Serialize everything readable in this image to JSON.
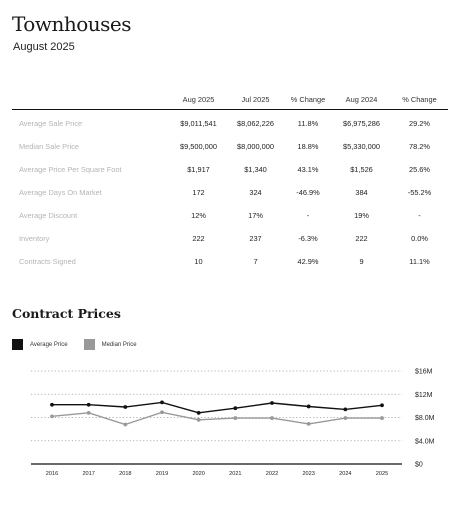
{
  "header": {
    "title": "Townhouses",
    "subtitle": "August 2025"
  },
  "table": {
    "columns": [
      "Aug 2025",
      "Jul 2025",
      "% Change",
      "Aug 2024",
      "% Change"
    ],
    "rows": [
      {
        "label": "Average Sale Price",
        "values": [
          "$9,011,541",
          "$8,062,226",
          "11.8%",
          "$6,975,286",
          "29.2%"
        ]
      },
      {
        "label": "Median Sale Price",
        "values": [
          "$9,500,000",
          "$8,000,000",
          "18.8%",
          "$5,330,000",
          "78.2%"
        ]
      },
      {
        "label": "Average Price Per Square Foot",
        "values": [
          "$1,917",
          "$1,340",
          "43.1%",
          "$1,526",
          "25.6%"
        ]
      },
      {
        "label": "Average Days On Market",
        "values": [
          "172",
          "324",
          "-46.9%",
          "384",
          "-55.2%"
        ]
      },
      {
        "label": "Average Discount",
        "values": [
          "12%",
          "17%",
          "-",
          "19%",
          "-"
        ]
      },
      {
        "label": "Inventory",
        "values": [
          "222",
          "237",
          "-6.3%",
          "222",
          "0.0%"
        ]
      },
      {
        "label": "Contracts Signed",
        "values": [
          "10",
          "7",
          "42.9%",
          "9",
          "11.1%"
        ]
      }
    ]
  },
  "chart_data": {
    "type": "line",
    "title": "Contract Prices",
    "x": [
      "2016",
      "2017",
      "2018",
      "2019",
      "2020",
      "2021",
      "2022",
      "2023",
      "2024",
      "2025"
    ],
    "series": [
      {
        "name": "Average Price",
        "color": "#111111",
        "values": [
          10.2,
          10.2,
          9.8,
          10.6,
          8.8,
          9.6,
          10.5,
          9.9,
          9.4,
          10.1
        ]
      },
      {
        "name": "Median Price",
        "color": "#999999",
        "values": [
          8.2,
          8.8,
          6.8,
          8.9,
          7.6,
          7.9,
          7.9,
          6.9,
          7.9,
          7.9
        ]
      }
    ],
    "y_ticks": [
      "$0",
      "$4.0M",
      "$8.0M",
      "$12M",
      "$16M"
    ],
    "ylim": [
      0,
      16
    ],
    "grid": true,
    "legend": "top-left"
  }
}
